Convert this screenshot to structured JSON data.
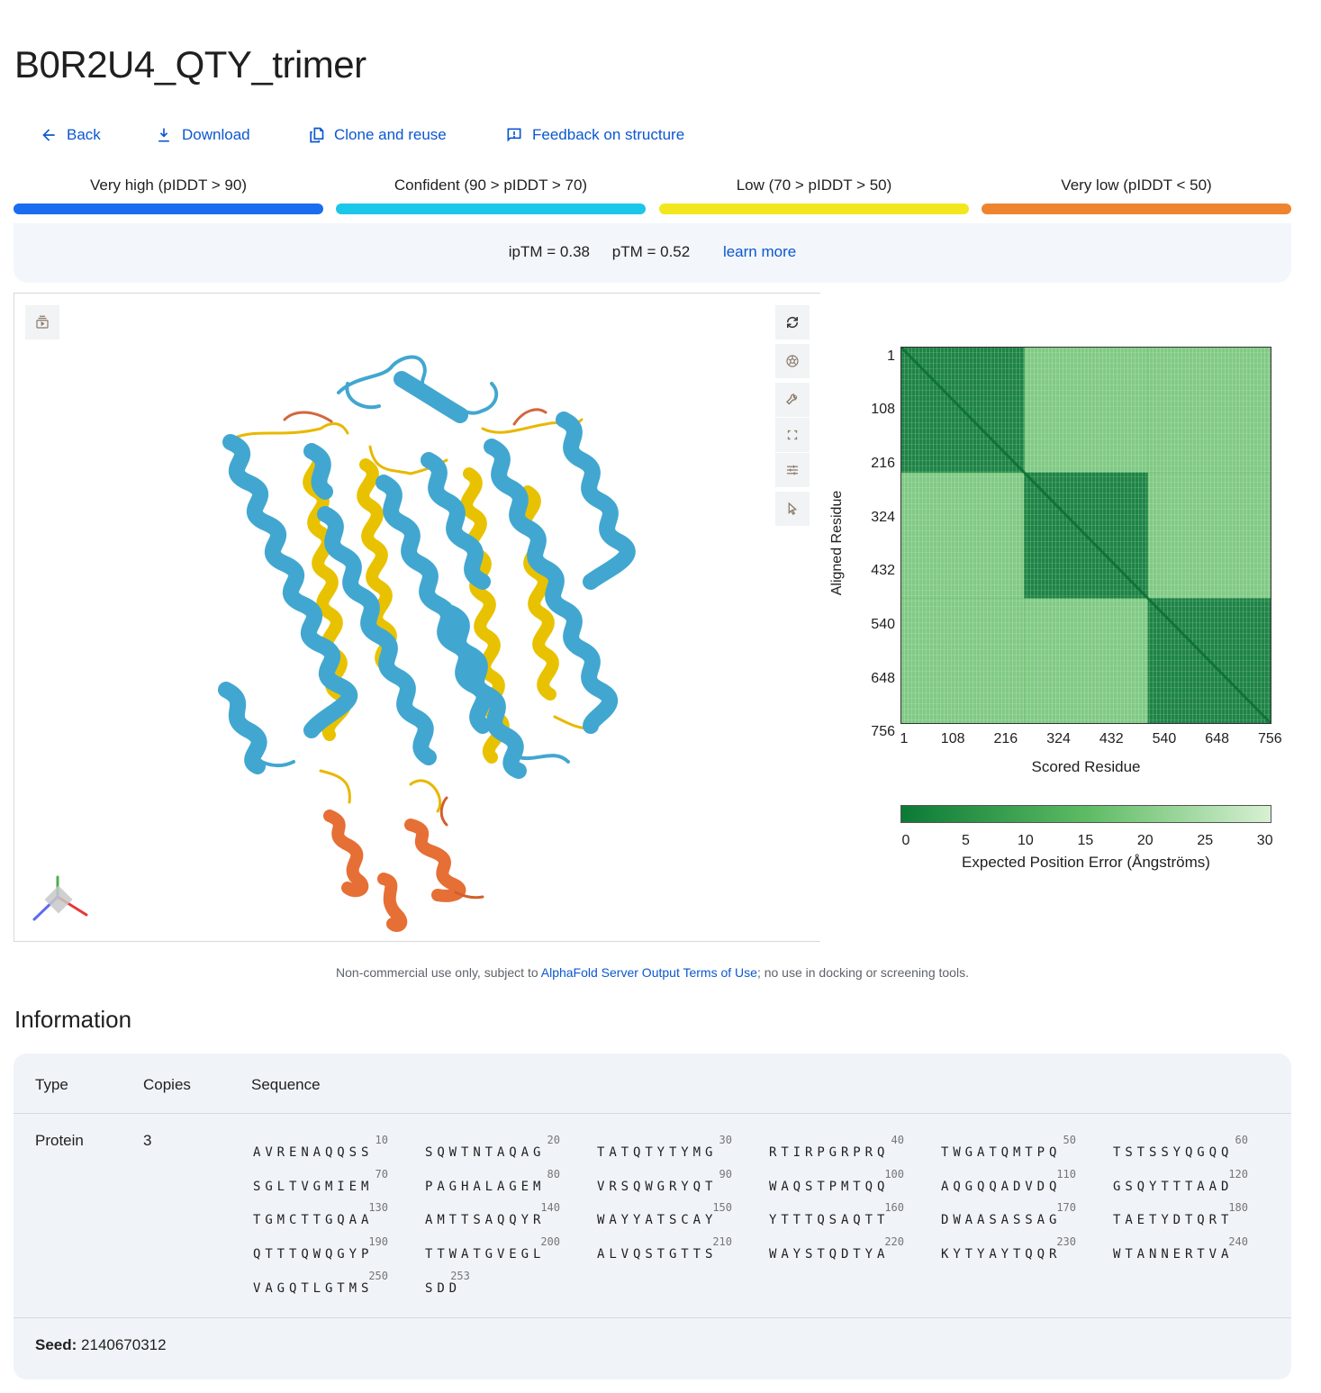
{
  "title": "B0R2U4_QTY_trimer",
  "actions": [
    {
      "label": "Back",
      "icon": "arrow-back-icon"
    },
    {
      "label": "Download",
      "icon": "download-icon"
    },
    {
      "label": "Clone and reuse",
      "icon": "copy-icon"
    },
    {
      "label": "Feedback on structure",
      "icon": "feedback-icon"
    }
  ],
  "plddt_legend": [
    {
      "label": "Very high (pIDDT > 90)",
      "color": "#1a6df0"
    },
    {
      "label": "Confident (90 > pIDDT > 70)",
      "color": "#1bc7e9"
    },
    {
      "label": "Low (70 > pIDDT > 50)",
      "color": "#f2e71c"
    },
    {
      "label": "Very low (pIDDT < 50)",
      "color": "#ef8430"
    }
  ],
  "metrics": {
    "iptm": "ipTM = 0.38",
    "ptm": "pTM = 0.52",
    "learn_more": "learn more"
  },
  "viewer_icons": [
    "snapshot-icon",
    "reset-icon",
    "camera-icon",
    "wrench-icon",
    "fullscreen-icon",
    "settings-sliders-icon",
    "cursor-icon"
  ],
  "chart_data": {
    "type": "heatmap",
    "xlabel": "Scored Residue",
    "ylabel": "Aligned Residue",
    "ticks": [
      "1",
      "108",
      "216",
      "324",
      "432",
      "540",
      "648",
      "756"
    ],
    "range": [
      1,
      759
    ],
    "blocks": 3,
    "colorbar": {
      "label": "Expected Position Error (Ångströms)",
      "ticks": [
        "0",
        "5",
        "10",
        "15",
        "20",
        "25",
        "30"
      ],
      "range": [
        0,
        31
      ],
      "colors": [
        "#0b7a36",
        "#5dbb63",
        "#d8f0d3"
      ]
    }
  },
  "footer": {
    "prefix": "Non-commercial use only, subject to ",
    "link": "AlphaFold Server Output Terms of Use",
    "suffix": "; no use in docking or screening tools."
  },
  "info": {
    "title": "Information",
    "headers": {
      "type": "Type",
      "copies": "Copies",
      "sequence": "Sequence"
    },
    "type": "Protein",
    "copies": "3",
    "sequence_blocks": [
      {
        "n": "10",
        "s": "AVRENAQQSS"
      },
      {
        "n": "20",
        "s": "SQWTNTAQAG"
      },
      {
        "n": "30",
        "s": "TATQTYTYMG"
      },
      {
        "n": "40",
        "s": "RTIRPGRPRQ"
      },
      {
        "n": "50",
        "s": "TWGATQMTPQ"
      },
      {
        "n": "60",
        "s": "TSTSSYQGQQ"
      },
      {
        "n": "70",
        "s": "SGLTVGMIEM"
      },
      {
        "n": "80",
        "s": "PAGHALAGEM"
      },
      {
        "n": "90",
        "s": "VRSQWGRYQT"
      },
      {
        "n": "100",
        "s": "WAQSTPMTQQ"
      },
      {
        "n": "110",
        "s": "AQGQQADVDQ"
      },
      {
        "n": "120",
        "s": "GSQYTTTAAD"
      },
      {
        "n": "130",
        "s": "TGMCTTGQAA"
      },
      {
        "n": "140",
        "s": "AMTTSAQQYR"
      },
      {
        "n": "150",
        "s": "WAYYATSCAY"
      },
      {
        "n": "160",
        "s": "YTTTQSAQTT"
      },
      {
        "n": "170",
        "s": "DWAASASSAG"
      },
      {
        "n": "180",
        "s": "TAETYDTQRT"
      },
      {
        "n": "190",
        "s": "QTTTQWQGYP"
      },
      {
        "n": "200",
        "s": "TTWATGVEGL"
      },
      {
        "n": "210",
        "s": "ALVQSTGTTS"
      },
      {
        "n": "220",
        "s": "WAYSTQDTYA"
      },
      {
        "n": "230",
        "s": "KYTYAYTQQR"
      },
      {
        "n": "240",
        "s": "WTANNERTVA"
      },
      {
        "n": "250",
        "s": "VAGQTLGTMS"
      },
      {
        "n": "253",
        "s": "SDD"
      }
    ],
    "seed_label": "Seed:",
    "seed_value": "2140670312"
  }
}
